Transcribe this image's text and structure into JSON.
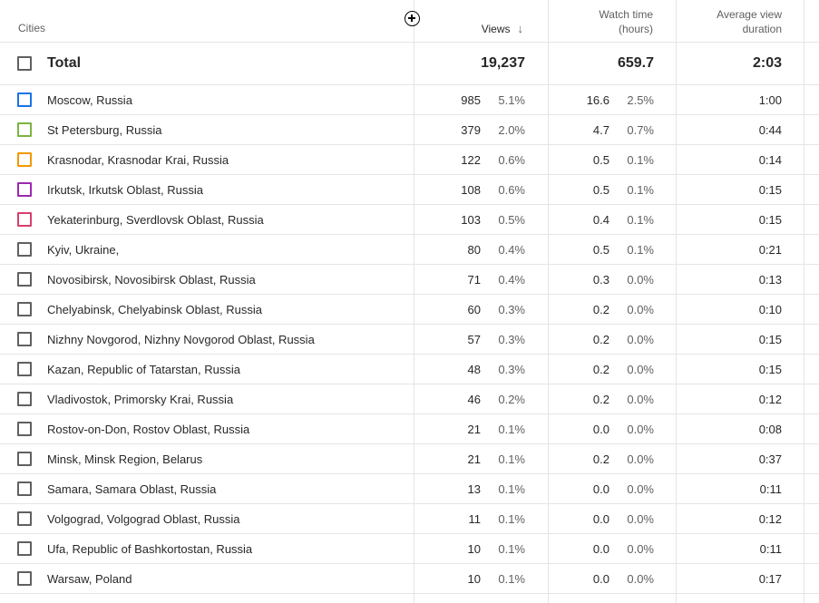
{
  "header": {
    "cities": "Cities",
    "add_metric_icon": "plus-circle-icon",
    "views": "Views",
    "sort_icon": "arrow-down-icon",
    "watch_time_line1": "Watch time",
    "watch_time_line2": "(hours)",
    "avd_line1": "Average view",
    "avd_line2": "duration"
  },
  "total": {
    "label": "Total",
    "views": "19,237",
    "watch_time": "659.7",
    "avg_duration": "2:03"
  },
  "colors": {
    "line": "#e5e5e5",
    "text": "#282828",
    "muted": "#606060"
  },
  "rows": [
    {
      "city": "Moscow, Russia",
      "views": "985",
      "views_pct": "5.1%",
      "watch": "16.6",
      "watch_pct": "2.5%",
      "avd": "1:00",
      "color": "#1a73e8"
    },
    {
      "city": "St Petersburg, Russia",
      "views": "379",
      "views_pct": "2.0%",
      "watch": "4.7",
      "watch_pct": "0.7%",
      "avd": "0:44",
      "color": "#7cb342"
    },
    {
      "city": "Krasnodar, Krasnodar Krai, Russia",
      "views": "122",
      "views_pct": "0.6%",
      "watch": "0.5",
      "watch_pct": "0.1%",
      "avd": "0:14",
      "color": "#f29900"
    },
    {
      "city": "Irkutsk, Irkutsk Oblast, Russia",
      "views": "108",
      "views_pct": "0.6%",
      "watch": "0.5",
      "watch_pct": "0.1%",
      "avd": "0:15",
      "color": "#9c27b0"
    },
    {
      "city": "Yekaterinburg, Sverdlovsk Oblast, Russia",
      "views": "103",
      "views_pct": "0.5%",
      "watch": "0.4",
      "watch_pct": "0.1%",
      "avd": "0:15",
      "color": "#d93f6e"
    },
    {
      "city": "Kyiv, Ukraine,",
      "views": "80",
      "views_pct": "0.4%",
      "watch": "0.5",
      "watch_pct": "0.1%",
      "avd": "0:21",
      "color": "#606060"
    },
    {
      "city": "Novosibirsk, Novosibirsk Oblast, Russia",
      "views": "71",
      "views_pct": "0.4%",
      "watch": "0.3",
      "watch_pct": "0.0%",
      "avd": "0:13",
      "color": "#606060"
    },
    {
      "city": "Chelyabinsk, Chelyabinsk Oblast, Russia",
      "views": "60",
      "views_pct": "0.3%",
      "watch": "0.2",
      "watch_pct": "0.0%",
      "avd": "0:10",
      "color": "#606060"
    },
    {
      "city": "Nizhny Novgorod, Nizhny Novgorod Oblast, Russia",
      "views": "57",
      "views_pct": "0.3%",
      "watch": "0.2",
      "watch_pct": "0.0%",
      "avd": "0:15",
      "color": "#606060"
    },
    {
      "city": "Kazan, Republic of Tatarstan, Russia",
      "views": "48",
      "views_pct": "0.3%",
      "watch": "0.2",
      "watch_pct": "0.0%",
      "avd": "0:15",
      "color": "#606060"
    },
    {
      "city": "Vladivostok, Primorsky Krai, Russia",
      "views": "46",
      "views_pct": "0.2%",
      "watch": "0.2",
      "watch_pct": "0.0%",
      "avd": "0:12",
      "color": "#606060"
    },
    {
      "city": "Rostov-on-Don, Rostov Oblast, Russia",
      "views": "21",
      "views_pct": "0.1%",
      "watch": "0.0",
      "watch_pct": "0.0%",
      "avd": "0:08",
      "color": "#606060"
    },
    {
      "city": "Minsk, Minsk Region, Belarus",
      "views": "21",
      "views_pct": "0.1%",
      "watch": "0.2",
      "watch_pct": "0.0%",
      "avd": "0:37",
      "color": "#606060"
    },
    {
      "city": "Samara, Samara Oblast, Russia",
      "views": "13",
      "views_pct": "0.1%",
      "watch": "0.0",
      "watch_pct": "0.0%",
      "avd": "0:11",
      "color": "#606060"
    },
    {
      "city": "Volgograd, Volgograd Oblast, Russia",
      "views": "11",
      "views_pct": "0.1%",
      "watch": "0.0",
      "watch_pct": "0.0%",
      "avd": "0:12",
      "color": "#606060"
    },
    {
      "city": "Ufa, Republic of Bashkortostan, Russia",
      "views": "10",
      "views_pct": "0.1%",
      "watch": "0.0",
      "watch_pct": "0.0%",
      "avd": "0:11",
      "color": "#606060"
    },
    {
      "city": "Warsaw, Poland",
      "views": "10",
      "views_pct": "0.1%",
      "watch": "0.0",
      "watch_pct": "0.0%",
      "avd": "0:17",
      "color": "#606060"
    }
  ]
}
